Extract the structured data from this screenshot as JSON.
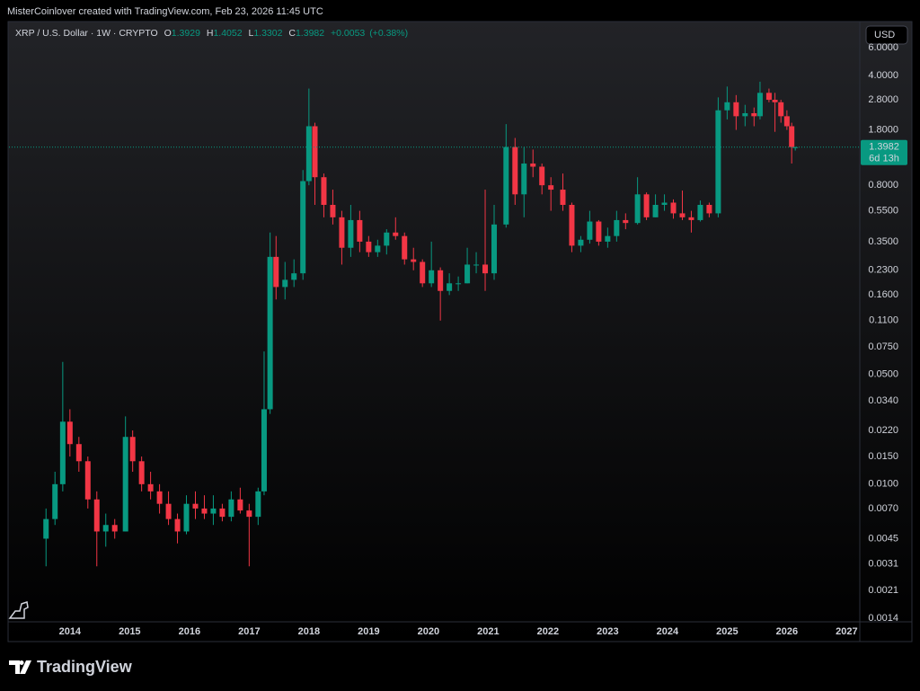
{
  "header": {
    "attribution": "MisterCoinlover created with TradingView.com, Feb 23, 2026 11:45 UTC"
  },
  "legend": {
    "symbol": "XRP / U.S. Dollar · 1W · CRYPTO",
    "fields": [
      {
        "key": "O",
        "value": 1.3929
      },
      {
        "key": "H",
        "value": 1.4052
      },
      {
        "key": "L",
        "value": 1.3302
      },
      {
        "key": "C",
        "value": 1.3982
      }
    ],
    "change": "+0.0053",
    "change_pct": "(+0.38%)"
  },
  "currency": "USD",
  "last": {
    "price": 1.3982,
    "countdown": "6d 13h"
  },
  "brand": "TradingView",
  "chart_data": {
    "type": "candlestick",
    "log_scale": true,
    "grid": false,
    "up_color": "#089981",
    "down_color": "#f23645",
    "xlim": [
      2012.98,
      2027.22
    ],
    "xticks": [
      2014,
      2015,
      2016,
      2017,
      2018,
      2019,
      2020,
      2021,
      2022,
      2023,
      2024,
      2025,
      2026,
      2027
    ],
    "ylim": [
      0.00133,
      8.36
    ],
    "yticks": [
      {
        "value": 6,
        "label": "6.0000"
      },
      {
        "value": 4,
        "label": "4.0000"
      },
      {
        "value": 2.8,
        "label": "2.8000"
      },
      {
        "value": 1.8,
        "label": "1.8000"
      },
      {
        "value": 0.8,
        "label": "0.8000"
      },
      {
        "value": 0.55,
        "label": "0.5500"
      },
      {
        "value": 0.35,
        "label": "0.3500"
      },
      {
        "value": 0.23,
        "label": "0.2300"
      },
      {
        "value": 0.16,
        "label": "0.1600"
      },
      {
        "value": 0.11,
        "label": "0.1100"
      },
      {
        "value": 0.075,
        "label": "0.0750"
      },
      {
        "value": 0.05,
        "label": "0.0500"
      },
      {
        "value": 0.034,
        "label": "0.0340"
      },
      {
        "value": 0.022,
        "label": "0.0220"
      },
      {
        "value": 0.015,
        "label": "0.0150"
      },
      {
        "value": 0.01,
        "label": "0.0100"
      },
      {
        "value": 0.007,
        "label": "0.0070"
      },
      {
        "value": 0.0045,
        "label": "0.0045"
      },
      {
        "value": 0.0031,
        "label": "0.0031"
      },
      {
        "value": 0.0021,
        "label": "0.0021"
      },
      {
        "value": 0.0014,
        "label": "0.0014"
      }
    ],
    "x": [
      2013.6,
      2013.75,
      2013.88,
      2014.0,
      2014.15,
      2014.3,
      2014.45,
      2014.6,
      2014.75,
      2014.93,
      2015.05,
      2015.2,
      2015.35,
      2015.5,
      2015.65,
      2015.8,
      2015.95,
      2016.1,
      2016.25,
      2016.4,
      2016.55,
      2016.7,
      2016.85,
      2017.0,
      2017.15,
      2017.25,
      2017.35,
      2017.45,
      2017.6,
      2017.75,
      2017.9,
      2018.0,
      2018.1,
      2018.25,
      2018.4,
      2018.55,
      2018.7,
      2018.85,
      2019.0,
      2019.15,
      2019.3,
      2019.45,
      2019.6,
      2019.75,
      2019.9,
      2020.05,
      2020.2,
      2020.35,
      2020.5,
      2020.65,
      2020.8,
      2020.95,
      2021.1,
      2021.3,
      2021.45,
      2021.6,
      2021.75,
      2021.9,
      2022.05,
      2022.25,
      2022.4,
      2022.55,
      2022.7,
      2022.85,
      2023.0,
      2023.15,
      2023.3,
      2023.5,
      2023.65,
      2023.8,
      2023.95,
      2024.1,
      2024.25,
      2024.4,
      2024.55,
      2024.7,
      2024.85,
      2025.0,
      2025.15,
      2025.3,
      2025.45,
      2025.55,
      2025.7,
      2025.8,
      2025.9,
      2026.0,
      2026.08,
      2026.14
    ],
    "open": [
      0.0045,
      0.006,
      0.01,
      0.025,
      0.018,
      0.014,
      0.008,
      0.005,
      0.0055,
      0.005,
      0.02,
      0.014,
      0.01,
      0.009,
      0.0075,
      0.006,
      0.005,
      0.0075,
      0.007,
      0.0065,
      0.007,
      0.0062,
      0.008,
      0.0068,
      0.0062,
      0.009,
      0.03,
      0.28,
      0.18,
      0.2,
      0.22,
      0.85,
      1.9,
      0.9,
      0.6,
      0.5,
      0.32,
      0.48,
      0.35,
      0.3,
      0.33,
      0.4,
      0.38,
      0.27,
      0.26,
      0.19,
      0.23,
      0.17,
      0.19,
      0.19,
      0.25,
      0.25,
      0.22,
      0.45,
      1.4,
      0.7,
      1.1,
      1.05,
      0.8,
      0.75,
      0.6,
      0.33,
      0.36,
      0.47,
      0.35,
      0.38,
      0.48,
      0.46,
      0.7,
      0.5,
      0.6,
      0.62,
      0.53,
      0.5,
      0.48,
      0.6,
      0.53,
      2.4,
      2.7,
      2.2,
      2.3,
      2.2,
      3.1,
      2.8,
      2.7,
      2.2,
      1.9,
      1.3929
    ],
    "high": [
      0.007,
      0.012,
      0.06,
      0.03,
      0.02,
      0.015,
      0.009,
      0.0065,
      0.006,
      0.027,
      0.022,
      0.015,
      0.012,
      0.01,
      0.009,
      0.0065,
      0.0085,
      0.009,
      0.0085,
      0.0085,
      0.0075,
      0.009,
      0.0095,
      0.0075,
      0.0095,
      0.07,
      0.4,
      0.38,
      0.26,
      0.27,
      1.0,
      3.3,
      2.0,
      0.95,
      0.75,
      0.55,
      0.6,
      0.55,
      0.38,
      0.36,
      0.42,
      0.5,
      0.4,
      0.32,
      0.27,
      0.35,
      0.24,
      0.22,
      0.21,
      0.32,
      0.3,
      0.75,
      0.6,
      1.96,
      1.6,
      1.4,
      1.35,
      1.1,
      0.9,
      0.95,
      0.62,
      0.38,
      0.55,
      0.48,
      0.43,
      0.55,
      0.53,
      0.9,
      0.72,
      0.7,
      0.7,
      0.65,
      0.74,
      0.55,
      0.64,
      0.62,
      2.9,
      3.4,
      3.0,
      2.6,
      2.5,
      3.65,
      3.3,
      3.1,
      2.8,
      2.4,
      2.0,
      1.4052
    ],
    "low": [
      0.003,
      0.0055,
      0.009,
      0.015,
      0.012,
      0.007,
      0.003,
      0.004,
      0.0045,
      0.005,
      0.012,
      0.009,
      0.008,
      0.0065,
      0.0055,
      0.0042,
      0.0048,
      0.006,
      0.006,
      0.0055,
      0.0058,
      0.0058,
      0.0065,
      0.003,
      0.0055,
      0.0085,
      0.028,
      0.15,
      0.15,
      0.18,
      0.2,
      0.8,
      0.6,
      0.5,
      0.45,
      0.25,
      0.28,
      0.3,
      0.28,
      0.28,
      0.29,
      0.36,
      0.25,
      0.23,
      0.18,
      0.18,
      0.11,
      0.16,
      0.17,
      0.19,
      0.22,
      0.17,
      0.2,
      0.43,
      0.6,
      0.5,
      0.9,
      0.7,
      0.55,
      0.55,
      0.3,
      0.3,
      0.34,
      0.33,
      0.32,
      0.35,
      0.42,
      0.45,
      0.48,
      0.5,
      0.55,
      0.49,
      0.48,
      0.4,
      0.47,
      0.5,
      0.5,
      2.1,
      1.8,
      1.9,
      1.9,
      2.1,
      2.7,
      1.75,
      2.0,
      1.8,
      1.1,
      1.3302
    ],
    "close": [
      0.006,
      0.01,
      0.025,
      0.018,
      0.014,
      0.008,
      0.005,
      0.0055,
      0.005,
      0.02,
      0.014,
      0.01,
      0.009,
      0.0075,
      0.006,
      0.005,
      0.0075,
      0.007,
      0.0065,
      0.007,
      0.0062,
      0.008,
      0.0068,
      0.0062,
      0.009,
      0.03,
      0.28,
      0.18,
      0.2,
      0.22,
      0.85,
      1.9,
      0.9,
      0.6,
      0.5,
      0.32,
      0.48,
      0.35,
      0.3,
      0.33,
      0.4,
      0.38,
      0.27,
      0.26,
      0.19,
      0.23,
      0.17,
      0.19,
      0.19,
      0.25,
      0.25,
      0.22,
      0.45,
      1.4,
      0.7,
      1.1,
      1.05,
      0.8,
      0.75,
      0.6,
      0.33,
      0.36,
      0.47,
      0.35,
      0.38,
      0.48,
      0.46,
      0.7,
      0.5,
      0.6,
      0.62,
      0.53,
      0.5,
      0.48,
      0.6,
      0.53,
      2.4,
      2.7,
      2.2,
      2.3,
      2.2,
      3.1,
      2.8,
      2.7,
      2.2,
      1.9,
      1.4,
      1.3982
    ]
  }
}
